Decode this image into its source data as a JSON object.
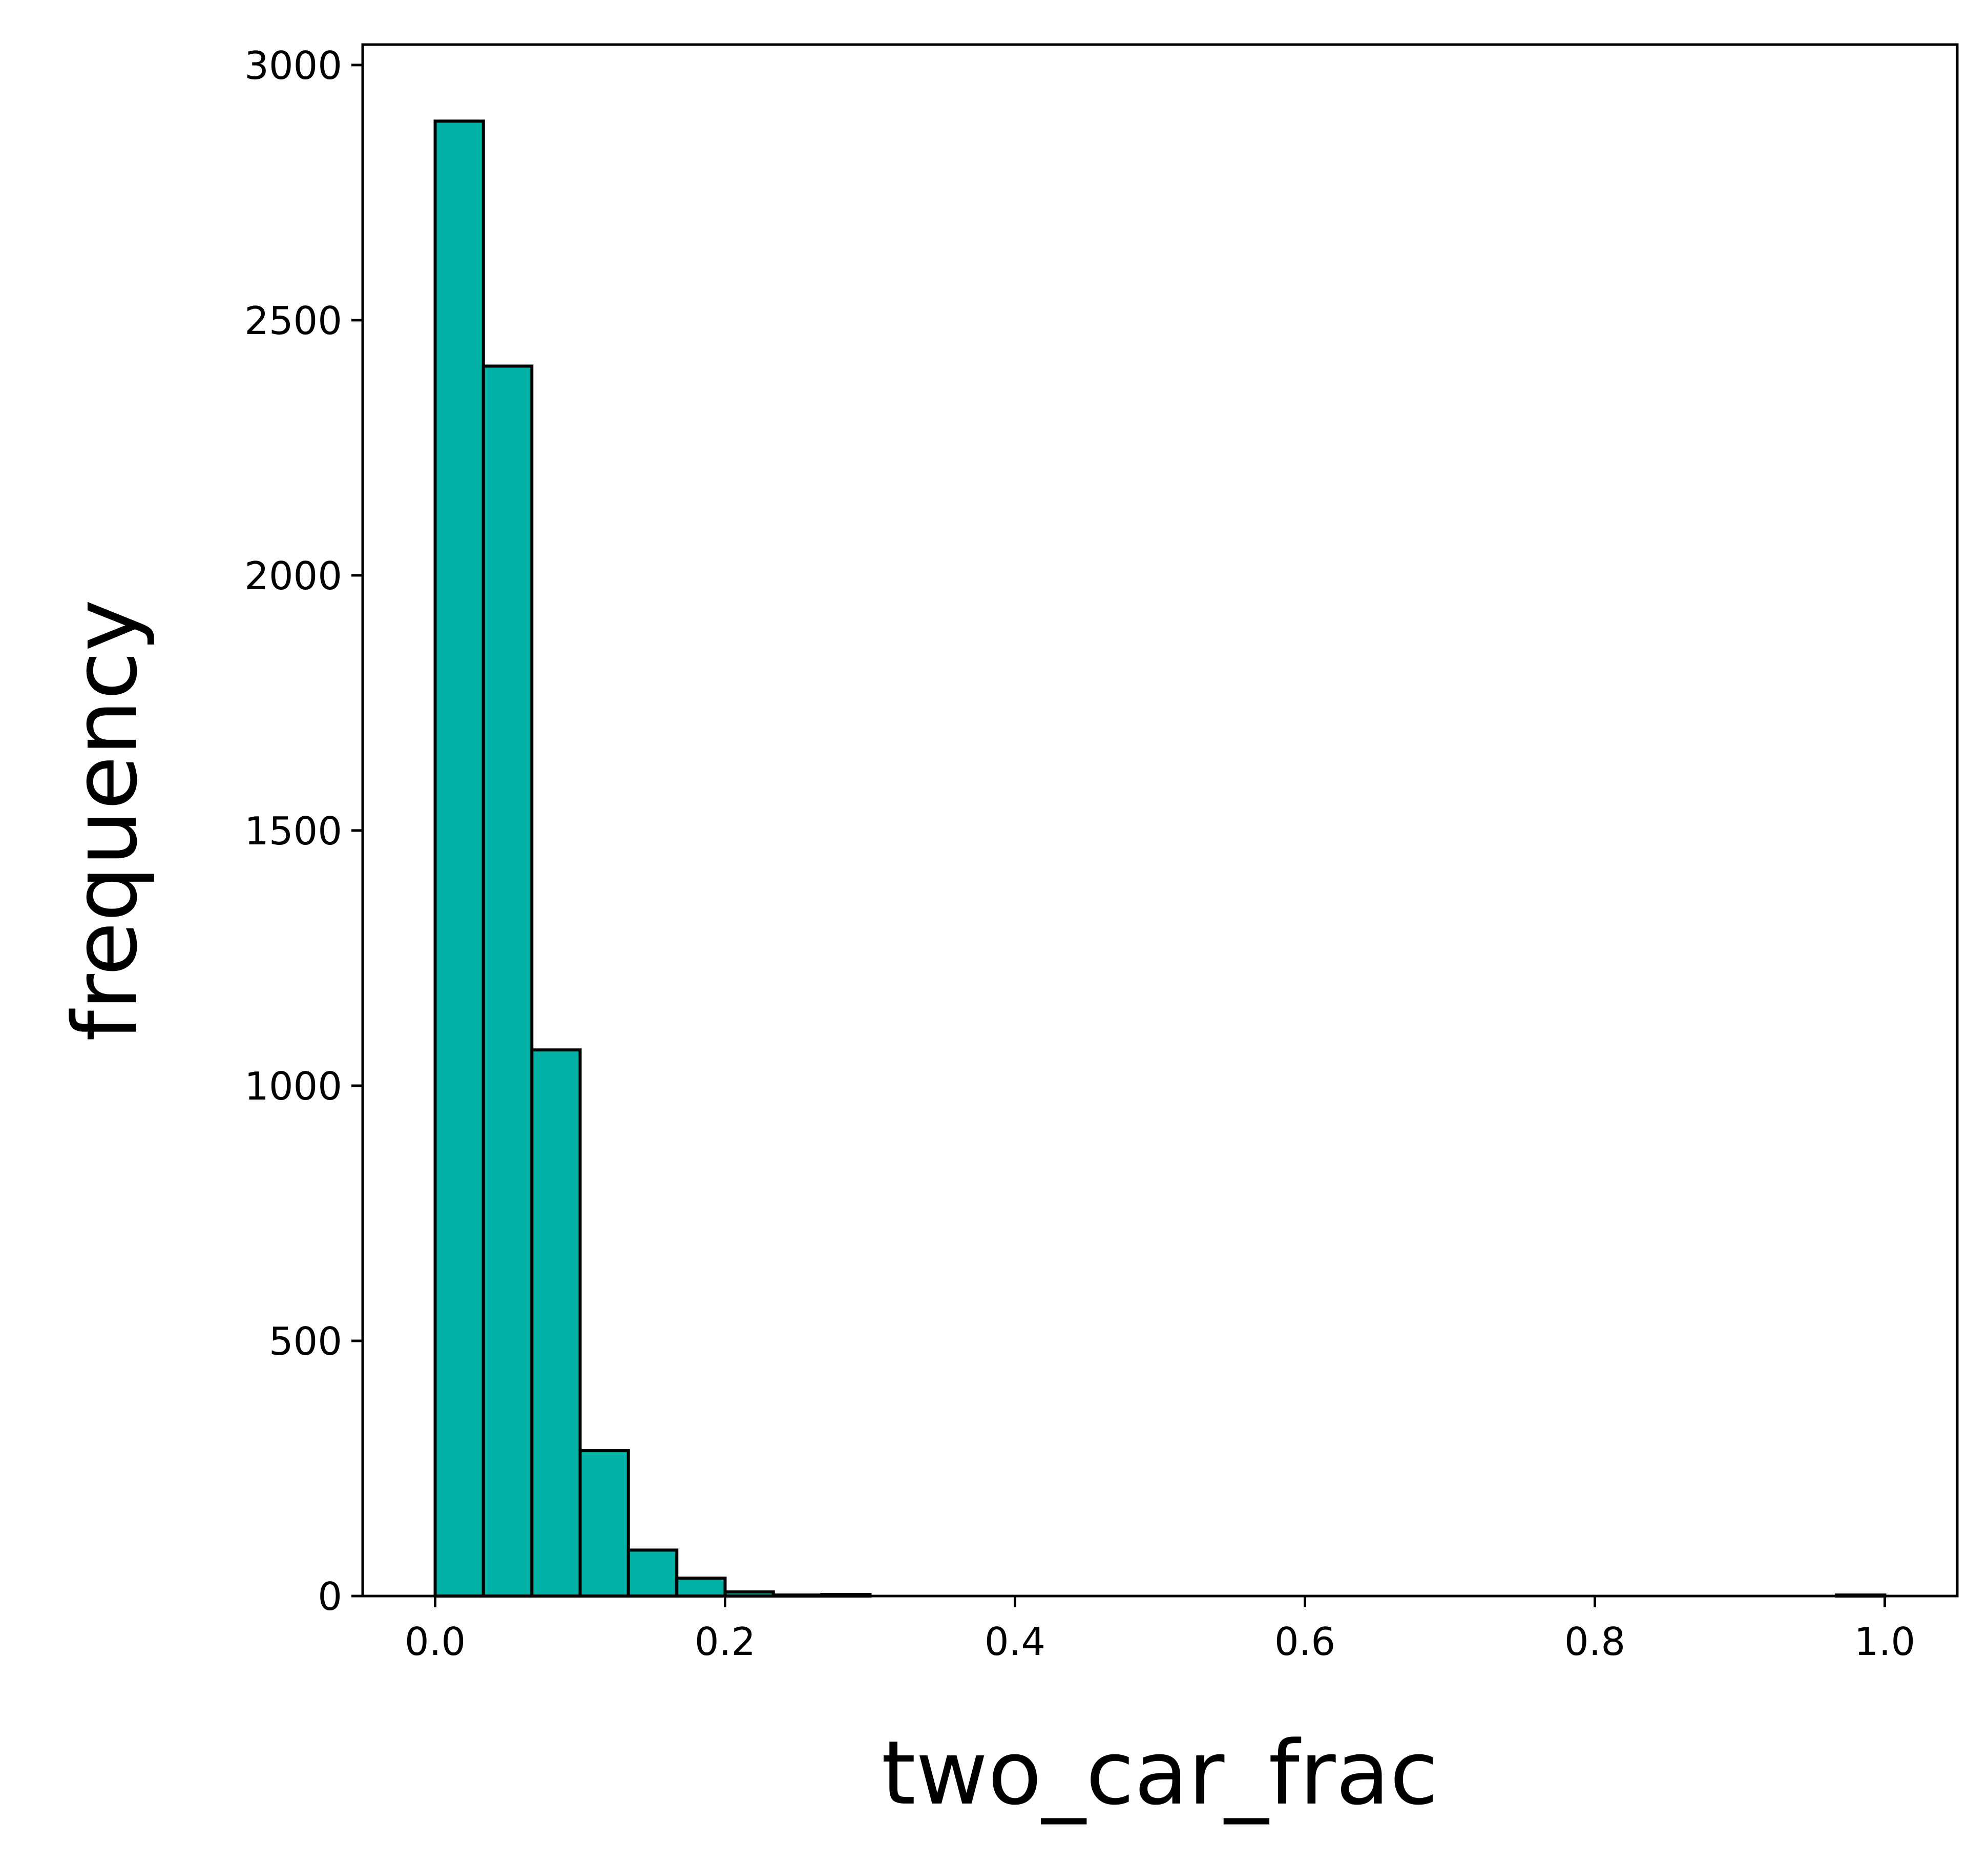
{
  "chart_data": {
    "type": "bar",
    "xlabel": "two_car_frac",
    "ylabel": "frequency",
    "xlim": [
      -0.05,
      1.05
    ],
    "ylim": [
      0,
      3040
    ],
    "xticks": [
      0.0,
      0.2,
      0.4,
      0.6,
      0.8,
      1.0
    ],
    "xtick_labels": [
      "0.0",
      "0.2",
      "0.4",
      "0.6",
      "0.8",
      "1.0"
    ],
    "yticks": [
      0,
      500,
      1000,
      1500,
      2000,
      2500,
      3000
    ],
    "ytick_labels": [
      "0",
      "500",
      "1000",
      "1500",
      "2000",
      "2500",
      "3000"
    ],
    "bin_edges": [
      0.0,
      0.0333,
      0.0667,
      0.1,
      0.1333,
      0.1667,
      0.2,
      0.2333,
      0.2667,
      0.3,
      0.3333,
      0.3667,
      0.4,
      0.4333,
      0.4667,
      0.5,
      0.5333,
      0.5667,
      0.6,
      0.6333,
      0.6667,
      0.7,
      0.7333,
      0.7667,
      0.8,
      0.8333,
      0.8667,
      0.9,
      0.9333,
      0.9667,
      1.0
    ],
    "values": [
      2890,
      2410,
      1070,
      285,
      90,
      35,
      8,
      2,
      3,
      0,
      0,
      0,
      0,
      0,
      0,
      0,
      0,
      0,
      0,
      0,
      0,
      0,
      0,
      0,
      0,
      0,
      0,
      0,
      0,
      2
    ],
    "bar_color": "#00b3a6",
    "edge_color": "#000000",
    "grid": false
  }
}
